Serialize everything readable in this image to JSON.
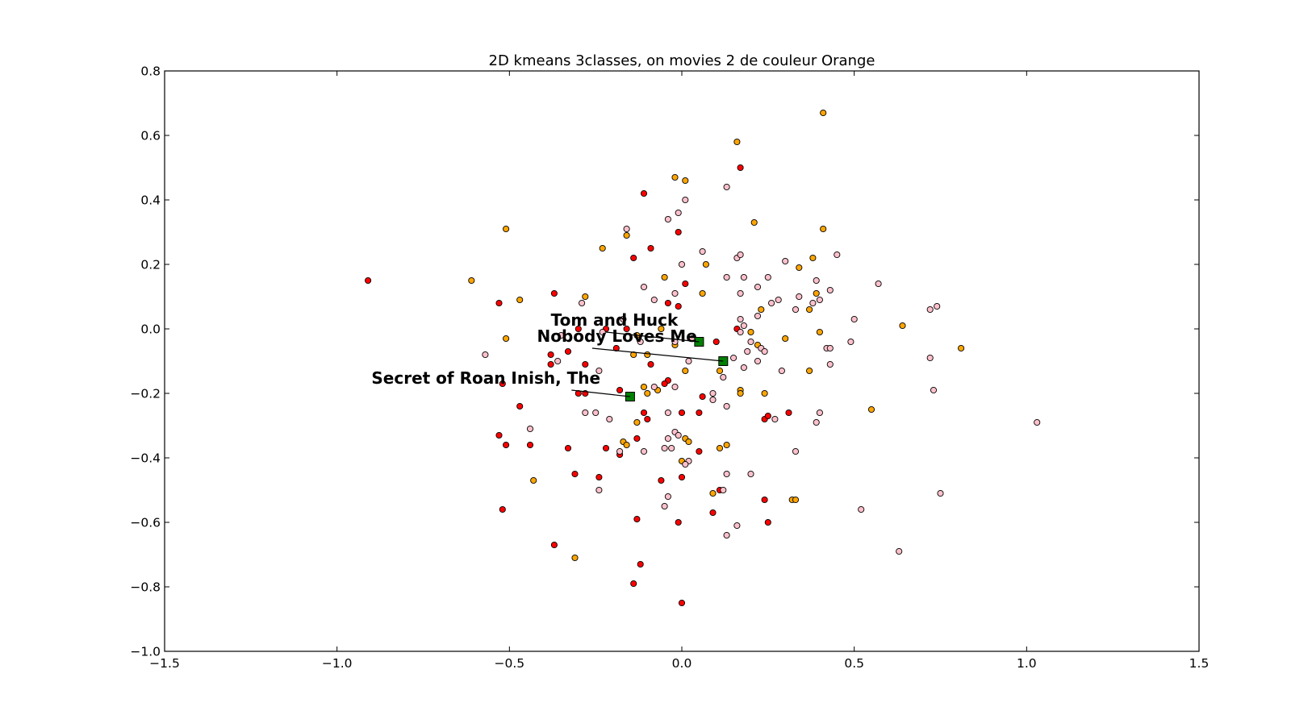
{
  "chart_data": {
    "type": "scatter",
    "title": "2D kmeans 3classes, on movies 2 de couleur Orange",
    "xlabel": "",
    "ylabel": "",
    "xlim": [
      -1.5,
      1.5
    ],
    "ylim": [
      -1.0,
      0.8
    ],
    "xticks": [
      -1.5,
      -1.0,
      -0.5,
      0.0,
      0.5,
      1.0,
      1.5
    ],
    "xtick_labels": [
      "−1.5",
      "−1.0",
      "−0.5",
      "0.0",
      "0.5",
      "1.0",
      "1.5"
    ],
    "yticks": [
      0.8,
      0.6,
      0.4,
      0.2,
      0.0,
      -0.2,
      -0.4,
      -0.6,
      -0.8,
      -1.0
    ],
    "ytick_labels": [
      "0.8",
      "0.6",
      "0.4",
      "0.2",
      "0.0",
      "−0.2",
      "−0.4",
      "−0.6",
      "−0.8",
      "−1.0"
    ],
    "grid": false,
    "legend": false,
    "series": [
      {
        "color": "#ff0000",
        "points": [
          [
            -0.91,
            0.15
          ],
          [
            -0.53,
            0.08
          ],
          [
            -0.37,
            0.11
          ],
          [
            -0.11,
            0.42
          ],
          [
            -0.14,
            0.22
          ],
          [
            -0.09,
            0.25
          ],
          [
            -0.01,
            0.3
          ],
          [
            0.17,
            0.5
          ],
          [
            0.01,
            0.14
          ],
          [
            -0.04,
            0.08
          ],
          [
            -0.01,
            0.07
          ],
          [
            0.1,
            -0.04
          ],
          [
            -0.16,
            0.0
          ],
          [
            -0.22,
            0.0
          ],
          [
            -0.3,
            0.0
          ],
          [
            -0.33,
            -0.07
          ],
          [
            -0.38,
            -0.08
          ],
          [
            -0.38,
            -0.11
          ],
          [
            -0.28,
            -0.11
          ],
          [
            -0.19,
            -0.06
          ],
          [
            -0.09,
            -0.11
          ],
          [
            -0.04,
            -0.16
          ],
          [
            -0.05,
            -0.17
          ],
          [
            0.16,
            0.0
          ],
          [
            -0.52,
            -0.17
          ],
          [
            -0.3,
            -0.2
          ],
          [
            -0.28,
            -0.2
          ],
          [
            -0.18,
            -0.19
          ],
          [
            -0.47,
            -0.24
          ],
          [
            -0.11,
            -0.26
          ],
          [
            -0.1,
            -0.28
          ],
          [
            0.0,
            -0.26
          ],
          [
            0.05,
            -0.26
          ],
          [
            0.06,
            -0.21
          ],
          [
            0.24,
            -0.28
          ],
          [
            0.25,
            -0.27
          ],
          [
            0.31,
            -0.26
          ],
          [
            -0.53,
            -0.33
          ],
          [
            -0.51,
            -0.36
          ],
          [
            -0.44,
            -0.36
          ],
          [
            -0.33,
            -0.37
          ],
          [
            -0.22,
            -0.37
          ],
          [
            -0.18,
            -0.39
          ],
          [
            -0.13,
            -0.34
          ],
          [
            0.05,
            -0.38
          ],
          [
            0.0,
            -0.46
          ],
          [
            -0.06,
            -0.47
          ],
          [
            -0.24,
            -0.46
          ],
          [
            -0.31,
            -0.45
          ],
          [
            0.11,
            -0.5
          ],
          [
            0.24,
            -0.53
          ],
          [
            -0.52,
            -0.56
          ],
          [
            -0.13,
            -0.59
          ],
          [
            0.09,
            -0.57
          ],
          [
            0.25,
            -0.6
          ],
          [
            -0.01,
            -0.6
          ],
          [
            -0.37,
            -0.67
          ],
          [
            -0.12,
            -0.73
          ],
          [
            -0.14,
            -0.79
          ],
          [
            0.0,
            -0.85
          ]
        ]
      },
      {
        "color": "#ffa500",
        "points": [
          [
            0.41,
            0.67
          ],
          [
            0.16,
            0.58
          ],
          [
            -0.02,
            0.47
          ],
          [
            0.01,
            0.46
          ],
          [
            0.21,
            0.33
          ],
          [
            0.41,
            0.31
          ],
          [
            -0.51,
            0.31
          ],
          [
            -0.16,
            0.29
          ],
          [
            -0.23,
            0.25
          ],
          [
            0.07,
            0.2
          ],
          [
            0.34,
            0.19
          ],
          [
            0.38,
            0.22
          ],
          [
            -0.61,
            0.15
          ],
          [
            -0.05,
            0.16
          ],
          [
            0.06,
            0.11
          ],
          [
            -0.28,
            0.1
          ],
          [
            -0.47,
            0.09
          ],
          [
            0.39,
            0.11
          ],
          [
            0.23,
            0.06
          ],
          [
            0.37,
            0.06
          ],
          [
            -0.06,
            0.0
          ],
          [
            0.2,
            -0.01
          ],
          [
            0.4,
            -0.01
          ],
          [
            0.64,
            0.01
          ],
          [
            -0.51,
            -0.03
          ],
          [
            -0.13,
            -0.02
          ],
          [
            0.3,
            -0.03
          ],
          [
            -0.02,
            -0.05
          ],
          [
            0.22,
            -0.05
          ],
          [
            0.81,
            -0.06
          ],
          [
            -0.14,
            -0.08
          ],
          [
            -0.1,
            -0.08
          ],
          [
            0.01,
            -0.13
          ],
          [
            0.11,
            -0.13
          ],
          [
            0.37,
            -0.13
          ],
          [
            -0.11,
            -0.18
          ],
          [
            -0.07,
            -0.19
          ],
          [
            -0.1,
            -0.2
          ],
          [
            0.17,
            -0.19
          ],
          [
            0.17,
            -0.2
          ],
          [
            0.24,
            -0.2
          ],
          [
            0.55,
            -0.25
          ],
          [
            -0.13,
            -0.29
          ],
          [
            0.01,
            -0.34
          ],
          [
            0.02,
            -0.35
          ],
          [
            -0.17,
            -0.35
          ],
          [
            -0.16,
            -0.36
          ],
          [
            0.11,
            -0.37
          ],
          [
            0.13,
            -0.36
          ],
          [
            0.0,
            -0.41
          ],
          [
            -0.43,
            -0.47
          ],
          [
            0.09,
            -0.51
          ],
          [
            0.32,
            -0.53
          ],
          [
            0.33,
            -0.53
          ],
          [
            -0.31,
            -0.71
          ]
        ]
      },
      {
        "color": "#ffc0cb",
        "points": [
          [
            0.13,
            0.44
          ],
          [
            0.01,
            0.4
          ],
          [
            -0.16,
            0.31
          ],
          [
            -0.04,
            0.34
          ],
          [
            -0.01,
            0.36
          ],
          [
            0.06,
            0.24
          ],
          [
            0.16,
            0.22
          ],
          [
            0.17,
            0.23
          ],
          [
            0.45,
            0.23
          ],
          [
            0.3,
            0.21
          ],
          [
            0.0,
            0.2
          ],
          [
            0.18,
            0.16
          ],
          [
            0.13,
            0.16
          ],
          [
            0.25,
            0.16
          ],
          [
            -0.11,
            0.13
          ],
          [
            0.22,
            0.13
          ],
          [
            0.39,
            0.15
          ],
          [
            0.43,
            0.12
          ],
          [
            0.57,
            0.14
          ],
          [
            0.17,
            0.11
          ],
          [
            0.34,
            0.1
          ],
          [
            -0.02,
            0.11
          ],
          [
            -0.08,
            0.09
          ],
          [
            0.28,
            0.09
          ],
          [
            0.38,
            0.08
          ],
          [
            0.4,
            0.09
          ],
          [
            -0.29,
            0.08
          ],
          [
            0.26,
            0.08
          ],
          [
            0.33,
            0.06
          ],
          [
            0.72,
            0.06
          ],
          [
            0.74,
            0.07
          ],
          [
            0.22,
            0.04
          ],
          [
            0.17,
            0.03
          ],
          [
            0.5,
            0.03
          ],
          [
            -0.17,
            0.03
          ],
          [
            0.18,
            0.01
          ],
          [
            0.17,
            -0.01
          ],
          [
            -0.35,
            -0.02
          ],
          [
            -0.23,
            -0.01
          ],
          [
            -0.12,
            -0.04
          ],
          [
            -0.02,
            -0.04
          ],
          [
            0.03,
            -0.03
          ],
          [
            0.2,
            -0.04
          ],
          [
            0.49,
            -0.04
          ],
          [
            -0.57,
            -0.08
          ],
          [
            0.19,
            -0.07
          ],
          [
            0.23,
            -0.06
          ],
          [
            0.24,
            -0.07
          ],
          [
            0.42,
            -0.06
          ],
          [
            0.43,
            -0.06
          ],
          [
            0.72,
            -0.09
          ],
          [
            0.02,
            -0.1
          ],
          [
            0.15,
            -0.09
          ],
          [
            0.22,
            -0.1
          ],
          [
            0.43,
            -0.11
          ],
          [
            -0.36,
            -0.1
          ],
          [
            0.18,
            -0.12
          ],
          [
            -0.24,
            -0.13
          ],
          [
            0.29,
            -0.13
          ],
          [
            0.12,
            -0.15
          ],
          [
            -0.02,
            -0.18
          ],
          [
            -0.08,
            -0.18
          ],
          [
            0.09,
            -0.2
          ],
          [
            0.09,
            -0.22
          ],
          [
            0.73,
            -0.19
          ],
          [
            0.13,
            -0.24
          ],
          [
            -0.28,
            -0.26
          ],
          [
            -0.25,
            -0.26
          ],
          [
            -0.04,
            -0.26
          ],
          [
            0.27,
            -0.28
          ],
          [
            0.4,
            -0.26
          ],
          [
            0.39,
            -0.29
          ],
          [
            -0.21,
            -0.28
          ],
          [
            1.03,
            -0.29
          ],
          [
            -0.44,
            -0.31
          ],
          [
            -0.02,
            -0.32
          ],
          [
            -0.01,
            -0.33
          ],
          [
            -0.04,
            -0.34
          ],
          [
            -0.05,
            -0.37
          ],
          [
            -0.03,
            -0.37
          ],
          [
            -0.18,
            -0.38
          ],
          [
            -0.11,
            -0.38
          ],
          [
            0.33,
            -0.38
          ],
          [
            0.02,
            -0.41
          ],
          [
            0.01,
            -0.42
          ],
          [
            0.13,
            -0.45
          ],
          [
            0.2,
            -0.45
          ],
          [
            -0.24,
            -0.5
          ],
          [
            0.12,
            -0.5
          ],
          [
            -0.04,
            -0.52
          ],
          [
            0.75,
            -0.51
          ],
          [
            -0.05,
            -0.55
          ],
          [
            0.52,
            -0.56
          ],
          [
            0.16,
            -0.61
          ],
          [
            0.13,
            -0.64
          ],
          [
            0.63,
            -0.69
          ]
        ]
      }
    ],
    "centroids": {
      "color": "#008000",
      "points": [
        [
          -0.15,
          -0.21
        ],
        [
          0.05,
          -0.04
        ],
        [
          0.12,
          -0.1
        ]
      ]
    },
    "annotations": [
      {
        "text": "Tom and Huck",
        "x": -0.38,
        "y": 0.01,
        "point": [
          0.05,
          -0.04
        ]
      },
      {
        "text": "Nobody Loves Me",
        "x": -0.42,
        "y": -0.04,
        "point": [
          0.12,
          -0.1
        ]
      },
      {
        "text": "Secret of Roan Inish, The",
        "x": -0.9,
        "y": -0.17,
        "point": [
          -0.15,
          -0.21
        ]
      }
    ]
  }
}
